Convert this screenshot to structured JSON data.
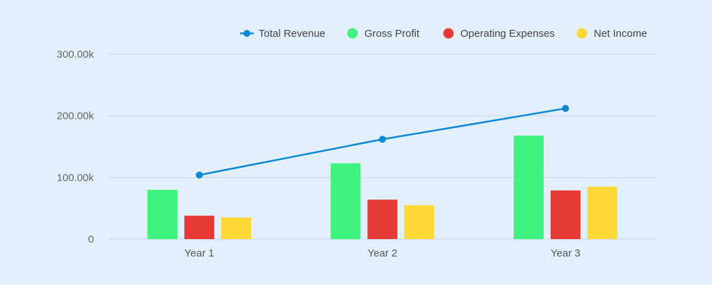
{
  "chart_data": {
    "type": "bar",
    "title": "",
    "xlabel": "",
    "ylabel": "",
    "categories": [
      "Year 1",
      "Year 2",
      "Year 3"
    ],
    "ylim": [
      0,
      300000
    ],
    "yticks": [
      0,
      100000,
      200000,
      300000
    ],
    "ytick_labels": [
      "0",
      "100.00k",
      "200.00k",
      "300.00k"
    ],
    "grid": true,
    "legend_position": "top-right",
    "series": [
      {
        "name": "Total Revenue",
        "kind": "line",
        "color": "#0a88d8",
        "values": [
          104000,
          162000,
          212000
        ]
      },
      {
        "name": "Gross Profit",
        "kind": "bar",
        "color": "#3ff37f",
        "values": [
          80000,
          123000,
          168000
        ]
      },
      {
        "name": "Operating Expenses",
        "kind": "bar",
        "color": "#e53935",
        "values": [
          38000,
          64000,
          79000
        ]
      },
      {
        "name": "Net Income",
        "kind": "bar",
        "color": "#fdd835",
        "values": [
          35000,
          55000,
          85000
        ]
      }
    ]
  }
}
